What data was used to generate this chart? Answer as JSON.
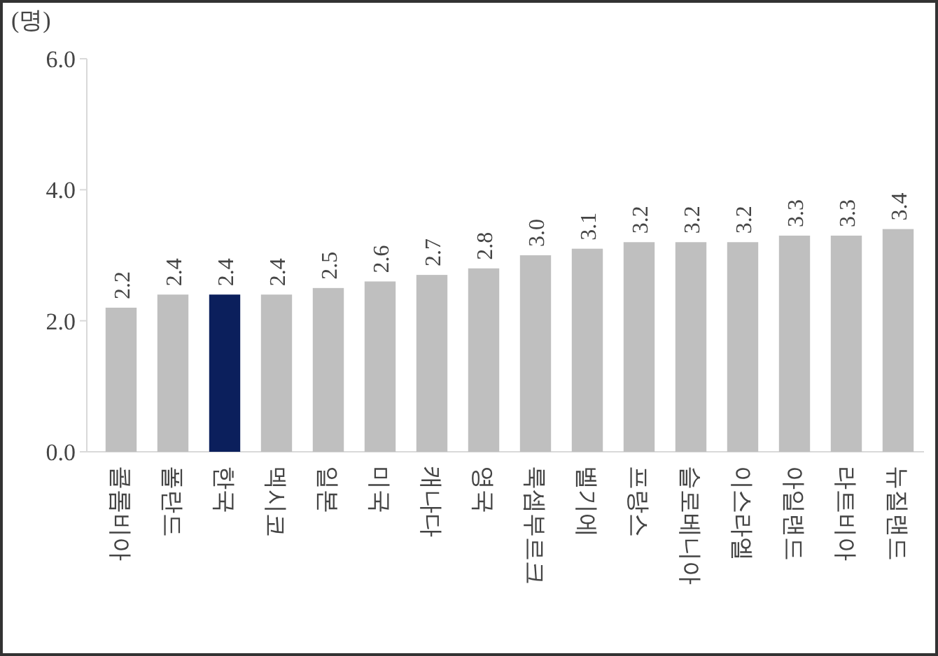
{
  "chart_data": {
    "type": "bar",
    "ylabel": "(명)",
    "categories": [
      "콜롬비아",
      "폴란드",
      "한국",
      "멕시코",
      "일본",
      "미국",
      "캐나다",
      "영국",
      "룩셈부르크",
      "벨기에",
      "프랑스",
      "슬로베니아",
      "이스라엘",
      "아일랜드",
      "라트비아",
      "뉴질랜드"
    ],
    "values": [
      2.2,
      2.4,
      2.4,
      2.4,
      2.5,
      2.6,
      2.7,
      2.8,
      3.0,
      3.1,
      3.2,
      3.2,
      3.2,
      3.3,
      3.3,
      3.4
    ],
    "colors": [
      "#bfbfbf",
      "#bfbfbf",
      "#0b1f5c",
      "#bfbfbf",
      "#bfbfbf",
      "#bfbfbf",
      "#bfbfbf",
      "#bfbfbf",
      "#bfbfbf",
      "#bfbfbf",
      "#bfbfbf",
      "#bfbfbf",
      "#bfbfbf",
      "#bfbfbf",
      "#bfbfbf",
      "#bfbfbf"
    ],
    "ylim": [
      0,
      6
    ],
    "yticks": [
      {
        "value": 0,
        "label": "0.0"
      },
      {
        "value": 2,
        "label": "2.0"
      },
      {
        "value": 4,
        "label": "4.0"
      },
      {
        "value": 6,
        "label": "6.0"
      }
    ],
    "value_labels": [
      "2.2",
      "2.4",
      "2.4",
      "2.4",
      "2.5",
      "2.6",
      "2.7",
      "2.8",
      "3.0",
      "3.1",
      "3.2",
      "3.2",
      "3.2",
      "3.3",
      "3.3",
      "3.4"
    ],
    "grid": false
  }
}
